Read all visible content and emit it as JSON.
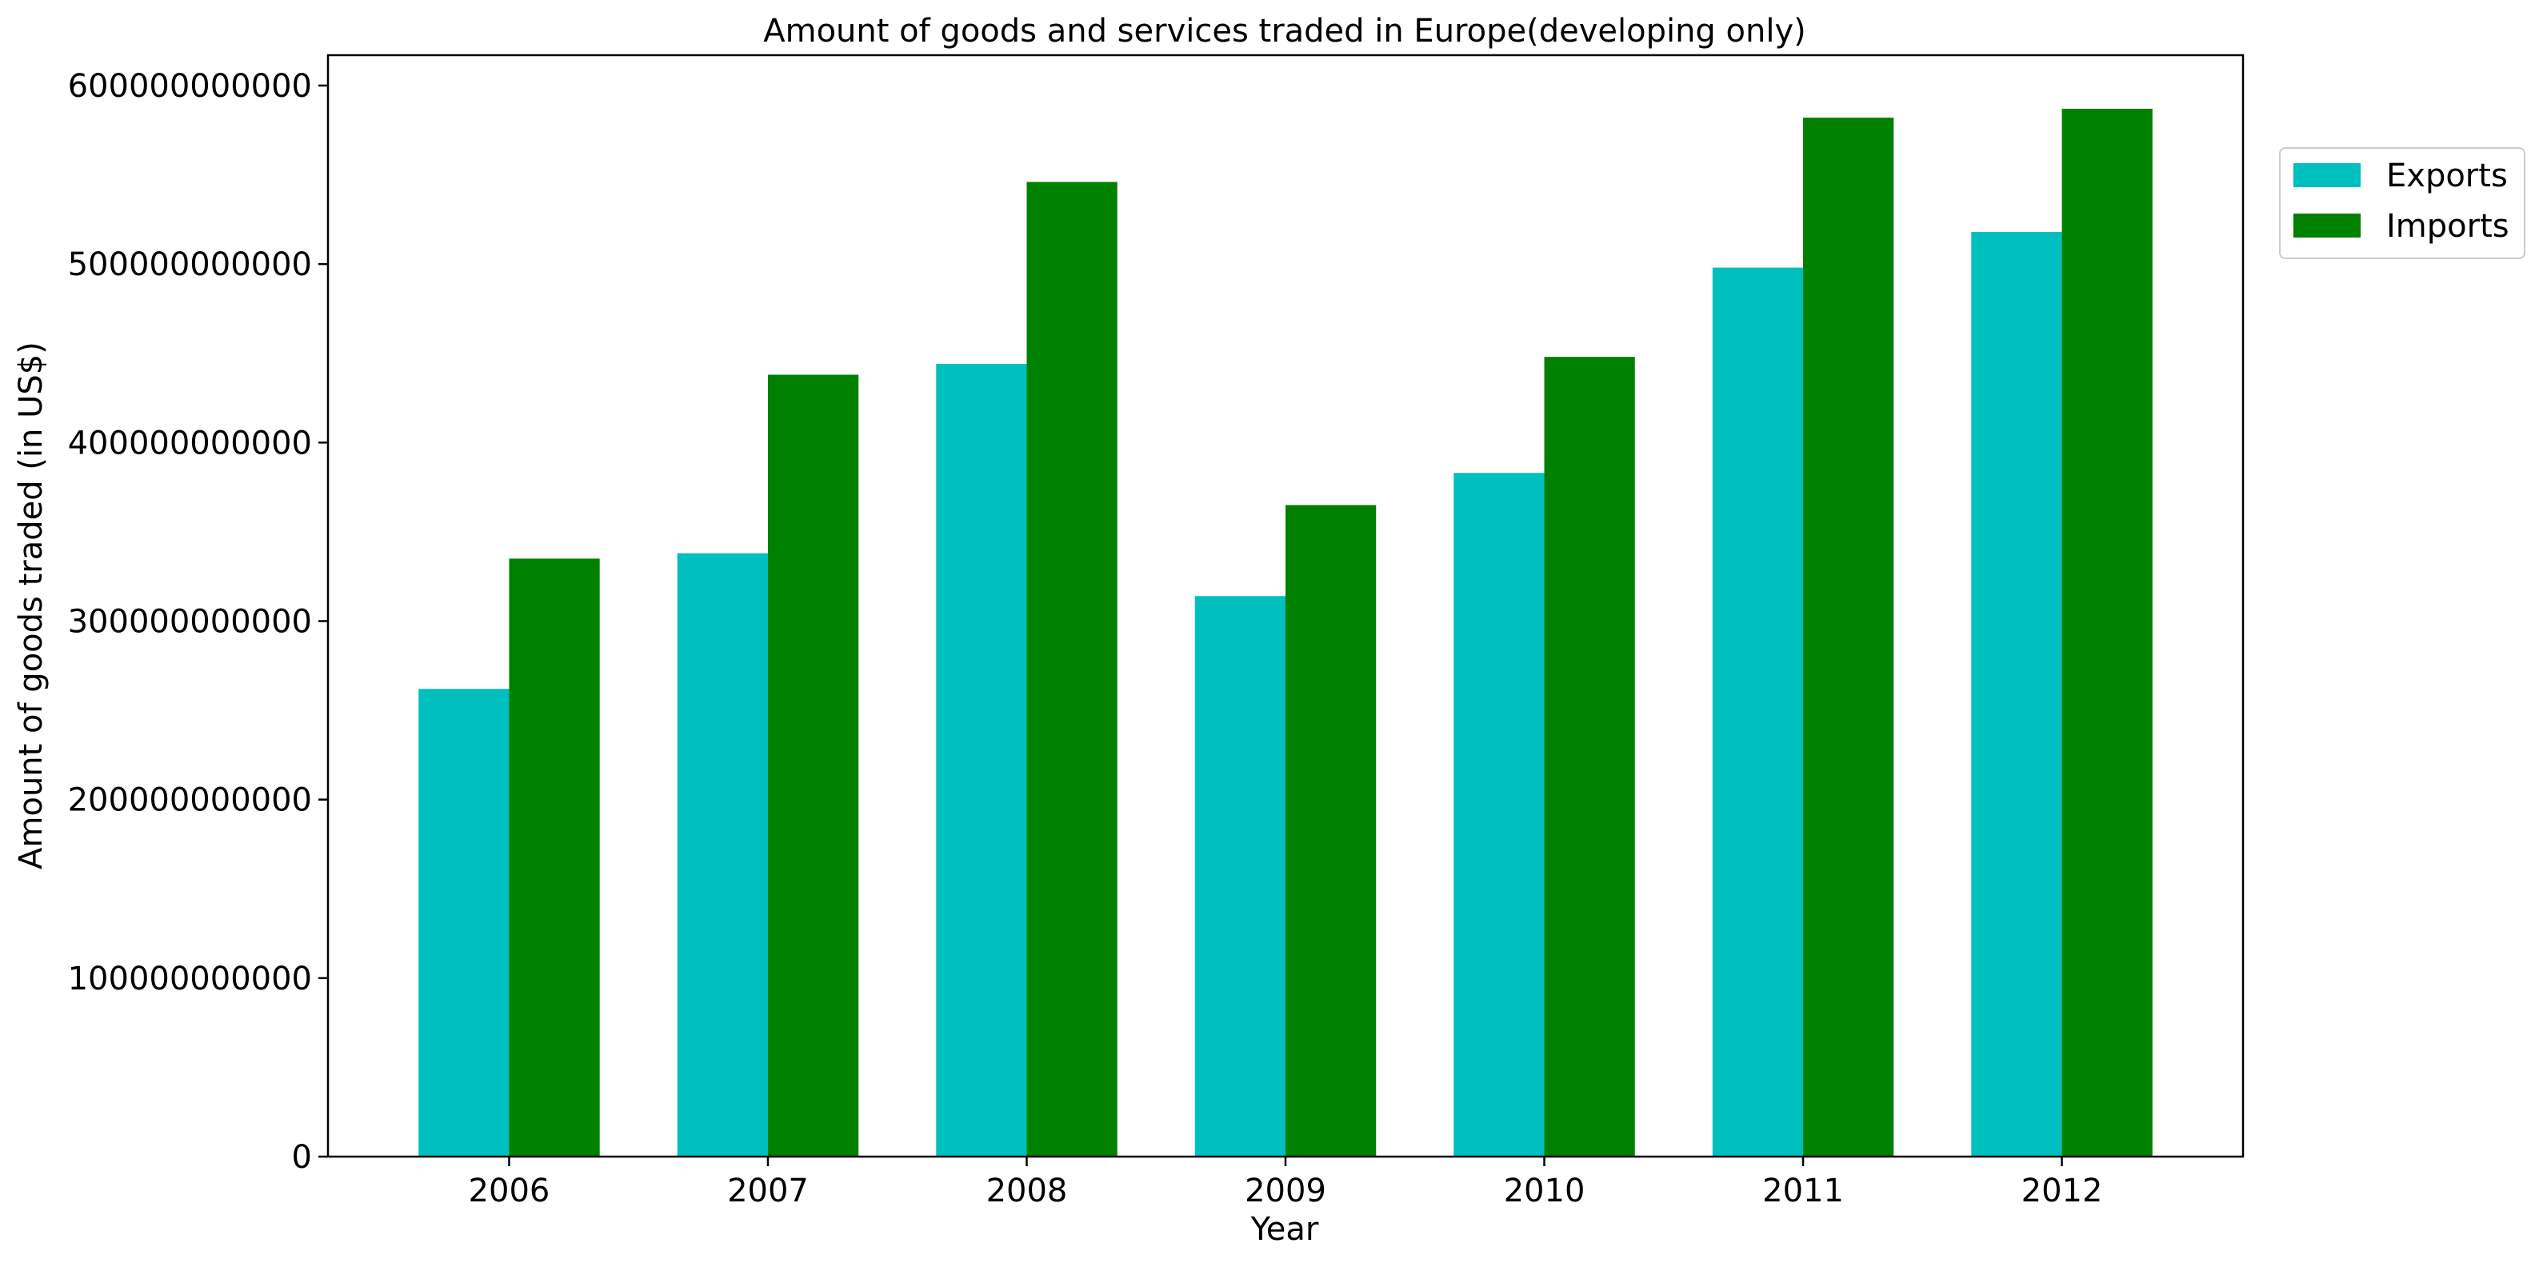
{
  "chart_data": {
    "type": "bar",
    "title": "Amount of goods and services traded in Europe(developing only)",
    "xlabel": "Year",
    "ylabel": "Amount of goods traded (in US$)",
    "categories": [
      "2006",
      "2007",
      "2008",
      "2009",
      "2010",
      "2011",
      "2012"
    ],
    "series": [
      {
        "name": "Exports",
        "color": "#00bfbf",
        "values": [
          262000000000,
          338000000000,
          444000000000,
          314000000000,
          383000000000,
          498000000000,
          518000000000
        ]
      },
      {
        "name": "Imports",
        "color": "#008000",
        "values": [
          335000000000,
          438000000000,
          546000000000,
          365000000000,
          448000000000,
          582000000000,
          587000000000
        ]
      }
    ],
    "ylim": [
      0,
      617000000000
    ],
    "yticks": [
      0,
      100000000000,
      200000000000,
      300000000000,
      400000000000,
      500000000000,
      600000000000
    ],
    "ytick_labels": [
      "0",
      "100000000000",
      "200000000000",
      "300000000000",
      "400000000000",
      "500000000000",
      "600000000000"
    ],
    "grid": false,
    "legend_position": "upper-right, outside plot"
  }
}
